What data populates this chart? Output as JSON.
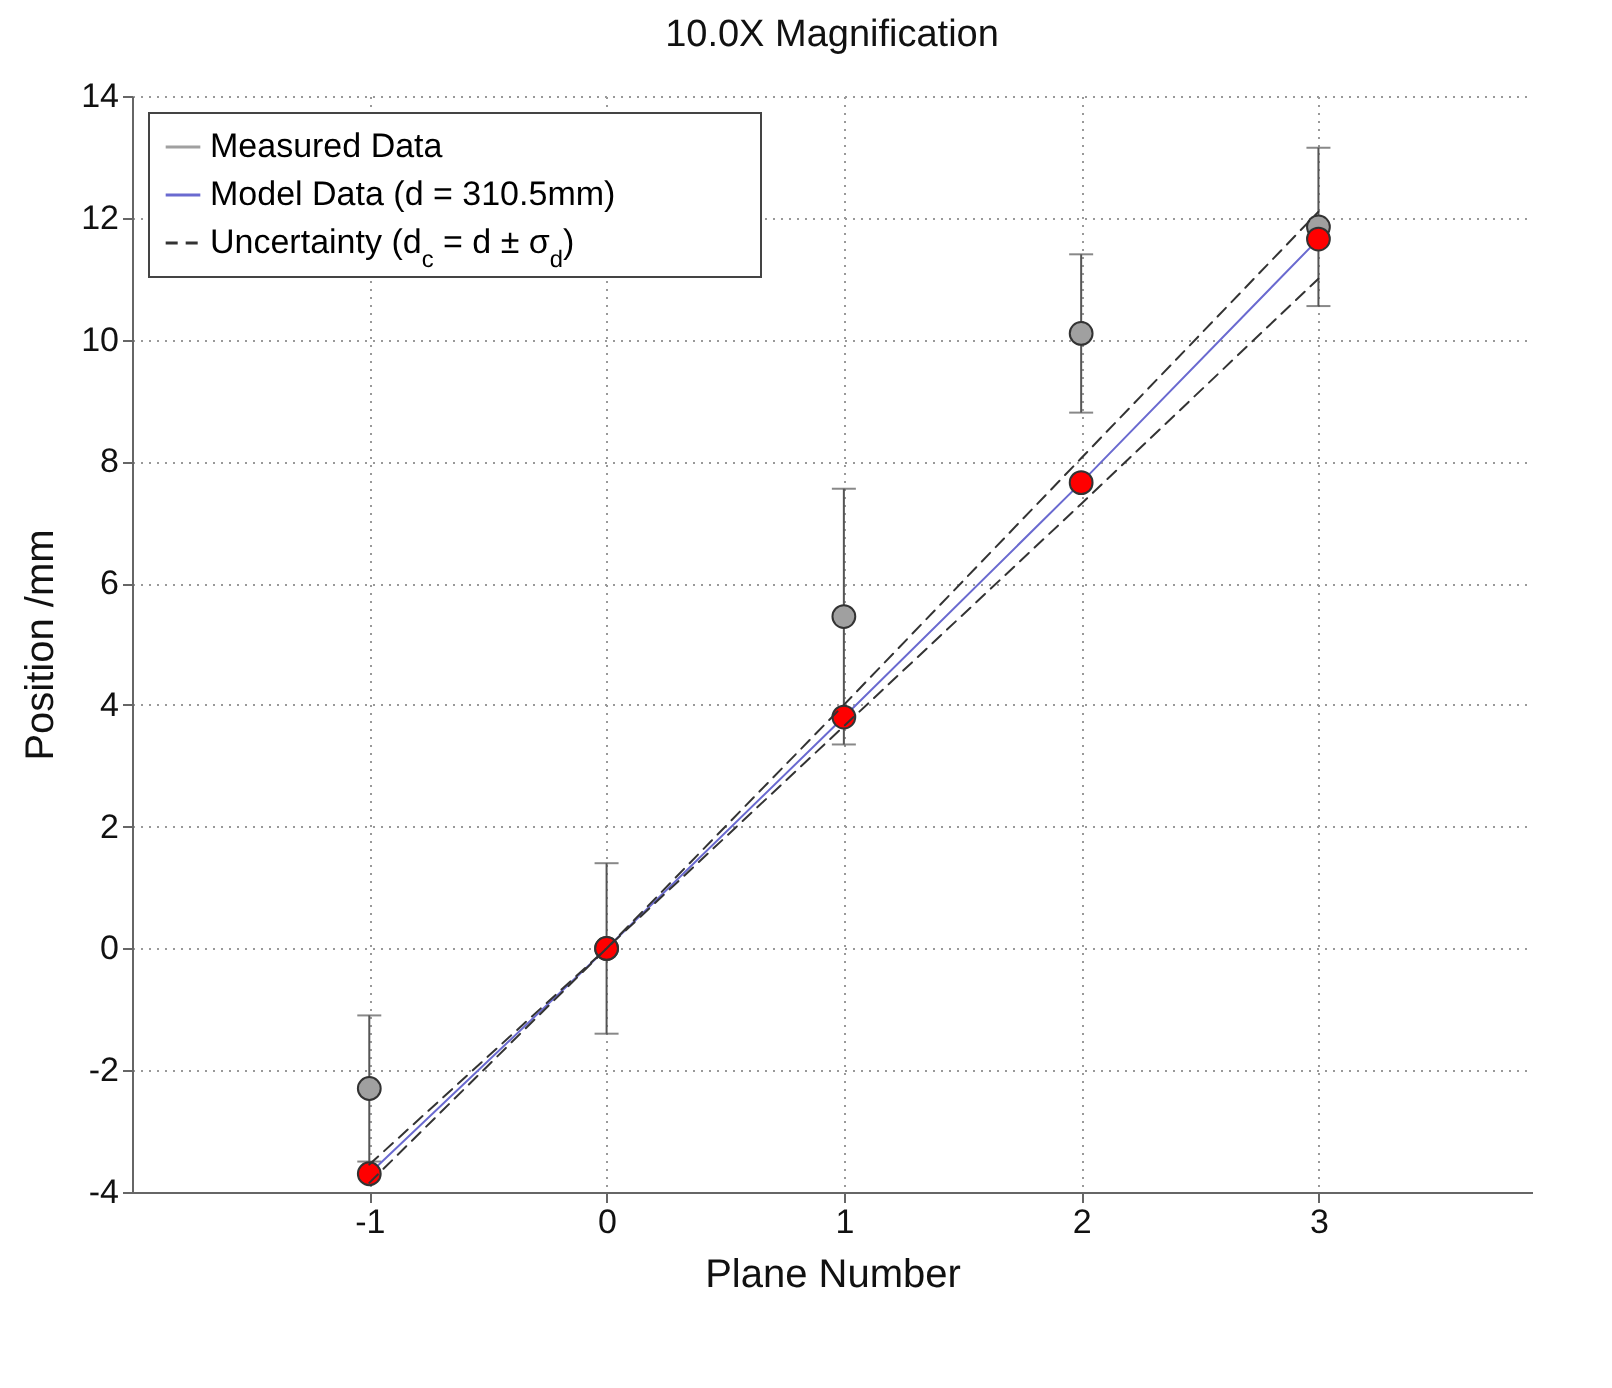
{
  "chart_data": {
    "type": "scatter",
    "title": "10.0X Magnification",
    "xlabel": "Plane Number",
    "ylabel": "Position /mm",
    "x": [
      -1,
      0,
      1,
      2,
      3
    ],
    "xlim": [
      -2,
      3.9
    ],
    "xticks": [
      -1,
      0,
      1,
      2,
      3
    ],
    "ylim": [
      -4,
      14
    ],
    "yticks": [
      -4,
      -2,
      0,
      2,
      4,
      6,
      8,
      10,
      12,
      14
    ],
    "grid": true,
    "legend": "top left",
    "series": [
      {
        "name": "Measured Data",
        "marker": "circle",
        "color": "#a0a0a0",
        "values": [
          -2.3,
          0,
          5.45,
          10.1,
          11.85
        ],
        "errors": [
          1.2,
          1.4,
          2.1,
          1.3,
          1.3
        ]
      },
      {
        "name": "Model Data (d = 310.5mm)",
        "type": "line",
        "marker": "circle",
        "line_style": "solid",
        "color": "#6a6ad0",
        "colors": [
          "#ff0000",
          "#ff0000",
          "#ff0000",
          "#ff0000",
          "#ff0000"
        ],
        "values": [
          -3.7,
          0,
          3.8,
          7.65,
          11.65
        ]
      },
      {
        "name": "Uncertainty (d$_{c}$ = d ± σ$_{d}$)",
        "type": "line",
        "marker": "none",
        "line_style": "dashed",
        "color": "#333333",
        "values": [
          -3.55,
          0,
          4.0,
          8.05,
          12.1
        ]
      },
      {
        "type": "line",
        "marker": "none",
        "line_style": "dashed",
        "color": "#333333",
        "values": [
          -3.85,
          0,
          3.65,
          7.3,
          11.0
        ]
      }
    ]
  }
}
